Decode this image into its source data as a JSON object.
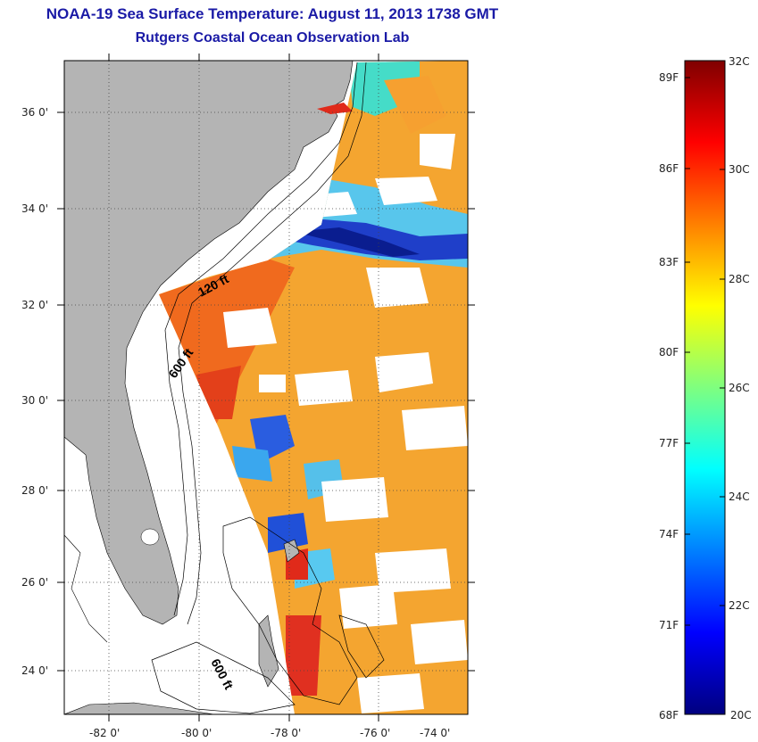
{
  "title": {
    "line1": "NOAA-19 Sea Surface Temperature:  August 11, 2013 1738 GMT",
    "line2": "Rutgers Coastal Ocean Observation Lab"
  },
  "map": {
    "lat_labels": [
      "36 0'",
      "34 0'",
      "32 0'",
      "30 0'",
      "28 0'",
      "26 0'",
      "24 0'"
    ],
    "lon_labels": [
      "-82 0'",
      "-80 0'",
      "-78 0'",
      "-76 0'",
      "-74 0'"
    ],
    "contour_labels": {
      "shelf_120": "120 ft",
      "shelf_600": "600 ft",
      "bahamas_600": "600 ft"
    },
    "colors": {
      "land": "#b4b4b4",
      "no_data": "#ffffff",
      "frame": "#000000"
    }
  },
  "colorbar": {
    "celsius_labels": [
      "32C",
      "30C",
      "28C",
      "26C",
      "24C",
      "22C",
      "20C"
    ],
    "fahrenheit_labels": [
      "89F",
      "86F",
      "83F",
      "80F",
      "77F",
      "74F",
      "71F",
      "68F"
    ],
    "colormap": "jet",
    "min_c": 20,
    "max_c": 32
  }
}
